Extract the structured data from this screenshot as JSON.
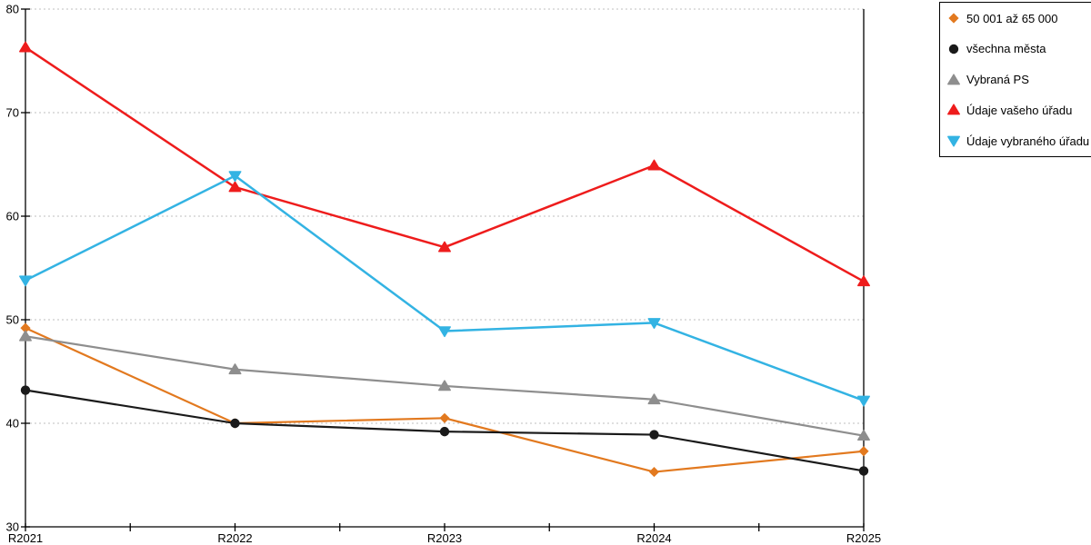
{
  "page": {
    "background_color": "#ffffff",
    "grid_color": "#bfbfbf",
    "axis_color": "#000000",
    "legend_border_color": "#000000"
  },
  "chart_data": {
    "type": "line",
    "title": "",
    "xlabel": "",
    "ylabel": "",
    "categories": [
      "R2021",
      "R2022",
      "R2023",
      "R2024",
      "R2025"
    ],
    "ylim": [
      30,
      80
    ],
    "y_ticks": [
      30,
      40,
      50,
      60,
      70,
      80
    ],
    "grid": "horizontal-dotted",
    "legend_position": "top-right",
    "series": [
      {
        "name": "50 001 až 65 000",
        "color": "#e2791f",
        "marker": "diamond",
        "line_width": 2.2,
        "values": [
          49.2,
          40.0,
          40.5,
          35.3,
          37.3
        ]
      },
      {
        "name": "všechna města",
        "color": "#1a1a1a",
        "marker": "circle",
        "line_width": 2.2,
        "values": [
          43.2,
          40.0,
          39.2,
          38.9,
          35.4
        ]
      },
      {
        "name": "Vybraná PS",
        "color": "#8e8e8e",
        "marker": "triangle-up",
        "line_width": 2.2,
        "values": [
          48.4,
          45.2,
          43.6,
          42.3,
          38.8
        ]
      },
      {
        "name": "Údaje vašeho úřadu",
        "color": "#ee1c1c",
        "marker": "triangle-up",
        "line_width": 2.5,
        "values": [
          76.3,
          62.8,
          57.0,
          64.9,
          53.7
        ]
      },
      {
        "name": "Údaje vybraného úřadu",
        "color": "#33b3e3",
        "marker": "triangle-down",
        "line_width": 2.5,
        "values": [
          53.8,
          63.9,
          48.9,
          49.7,
          42.2
        ]
      }
    ]
  }
}
